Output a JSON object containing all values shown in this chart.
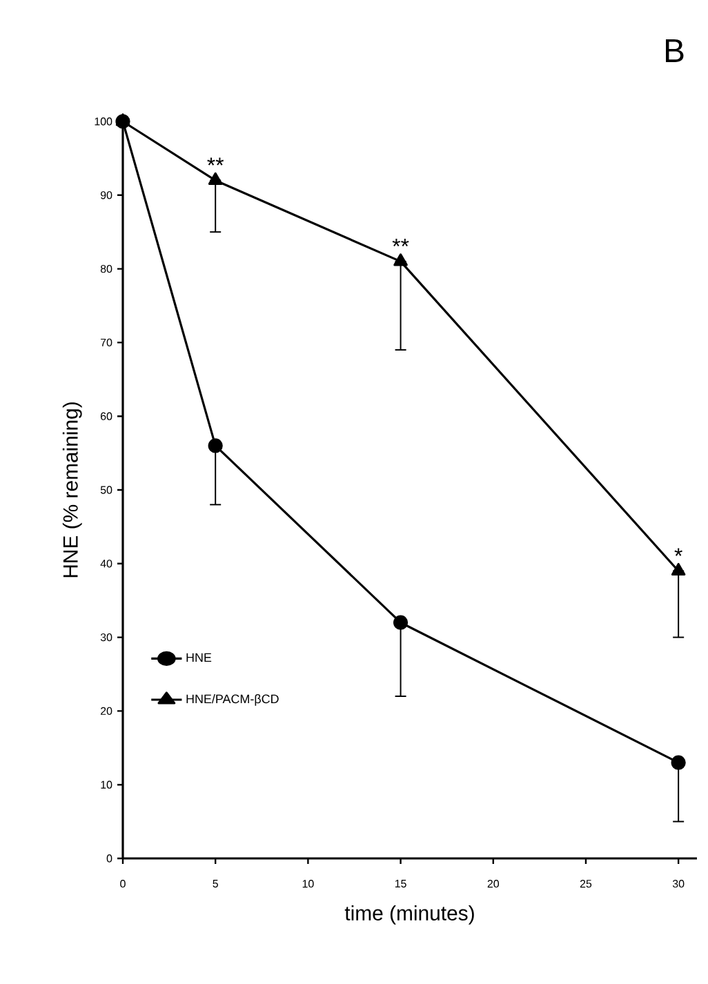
{
  "chart_data": {
    "type": "line",
    "title": "B",
    "xlabel": "time (minutes)",
    "ylabel": "HNE (% remaining)",
    "x": [
      0,
      5,
      15,
      30
    ],
    "series": [
      {
        "name": "HNE",
        "color": "#000000",
        "marker": "circle",
        "values": [
          100,
          56,
          32,
          13
        ],
        "errors": [
          null,
          [
            48,
            56
          ],
          [
            22,
            32
          ],
          [
            5,
            13
          ]
        ]
      },
      {
        "name": "HNE/PACM-βCD",
        "color": "#000000",
        "marker": "triangle",
        "values": [
          100,
          92,
          81,
          39
        ],
        "errors": [
          null,
          [
            85,
            92
          ],
          [
            69,
            81
          ],
          [
            30,
            39
          ]
        ]
      }
    ],
    "annotations": [
      {
        "text": "**",
        "x": 5,
        "y": 92
      },
      {
        "text": "**",
        "x": 15,
        "y": 81
      },
      {
        "text": "*",
        "x": 30,
        "y": 39
      }
    ],
    "xlim": [
      0,
      31
    ],
    "ylim": [
      0,
      100
    ],
    "xticks": [
      0,
      5,
      10,
      15,
      20,
      25,
      30
    ],
    "yticks": [
      0,
      10,
      20,
      30,
      40,
      50,
      60,
      70,
      80,
      90,
      100
    ],
    "grid": false,
    "legend": "bottom left",
    "line_style": "solid"
  }
}
